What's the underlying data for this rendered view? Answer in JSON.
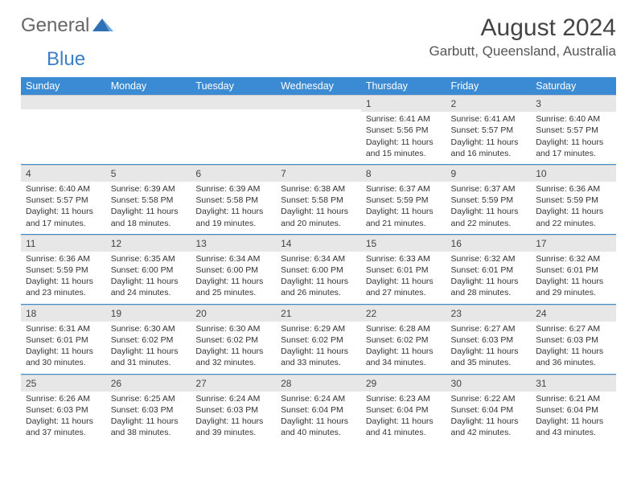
{
  "logo": {
    "part1": "General",
    "part2": "Blue"
  },
  "title": "August 2024",
  "location": "Garbutt, Queensland, Australia",
  "colors": {
    "header_bg": "#3b8bd4",
    "header_fg": "#ffffff",
    "daynum_bg": "#e7e7e7",
    "rule": "#3b8bd4",
    "text": "#333333",
    "logo_blue": "#3b7fc4"
  },
  "day_names": [
    "Sunday",
    "Monday",
    "Tuesday",
    "Wednesday",
    "Thursday",
    "Friday",
    "Saturday"
  ],
  "weeks": [
    [
      null,
      null,
      null,
      null,
      {
        "n": "1",
        "sunrise": "6:41 AM",
        "sunset": "5:56 PM",
        "daylight": "11 hours and 15 minutes."
      },
      {
        "n": "2",
        "sunrise": "6:41 AM",
        "sunset": "5:57 PM",
        "daylight": "11 hours and 16 minutes."
      },
      {
        "n": "3",
        "sunrise": "6:40 AM",
        "sunset": "5:57 PM",
        "daylight": "11 hours and 17 minutes."
      }
    ],
    [
      {
        "n": "4",
        "sunrise": "6:40 AM",
        "sunset": "5:57 PM",
        "daylight": "11 hours and 17 minutes."
      },
      {
        "n": "5",
        "sunrise": "6:39 AM",
        "sunset": "5:58 PM",
        "daylight": "11 hours and 18 minutes."
      },
      {
        "n": "6",
        "sunrise": "6:39 AM",
        "sunset": "5:58 PM",
        "daylight": "11 hours and 19 minutes."
      },
      {
        "n": "7",
        "sunrise": "6:38 AM",
        "sunset": "5:58 PM",
        "daylight": "11 hours and 20 minutes."
      },
      {
        "n": "8",
        "sunrise": "6:37 AM",
        "sunset": "5:59 PM",
        "daylight": "11 hours and 21 minutes."
      },
      {
        "n": "9",
        "sunrise": "6:37 AM",
        "sunset": "5:59 PM",
        "daylight": "11 hours and 22 minutes."
      },
      {
        "n": "10",
        "sunrise": "6:36 AM",
        "sunset": "5:59 PM",
        "daylight": "11 hours and 22 minutes."
      }
    ],
    [
      {
        "n": "11",
        "sunrise": "6:36 AM",
        "sunset": "5:59 PM",
        "daylight": "11 hours and 23 minutes."
      },
      {
        "n": "12",
        "sunrise": "6:35 AM",
        "sunset": "6:00 PM",
        "daylight": "11 hours and 24 minutes."
      },
      {
        "n": "13",
        "sunrise": "6:34 AM",
        "sunset": "6:00 PM",
        "daylight": "11 hours and 25 minutes."
      },
      {
        "n": "14",
        "sunrise": "6:34 AM",
        "sunset": "6:00 PM",
        "daylight": "11 hours and 26 minutes."
      },
      {
        "n": "15",
        "sunrise": "6:33 AM",
        "sunset": "6:01 PM",
        "daylight": "11 hours and 27 minutes."
      },
      {
        "n": "16",
        "sunrise": "6:32 AM",
        "sunset": "6:01 PM",
        "daylight": "11 hours and 28 minutes."
      },
      {
        "n": "17",
        "sunrise": "6:32 AM",
        "sunset": "6:01 PM",
        "daylight": "11 hours and 29 minutes."
      }
    ],
    [
      {
        "n": "18",
        "sunrise": "6:31 AM",
        "sunset": "6:01 PM",
        "daylight": "11 hours and 30 minutes."
      },
      {
        "n": "19",
        "sunrise": "6:30 AM",
        "sunset": "6:02 PM",
        "daylight": "11 hours and 31 minutes."
      },
      {
        "n": "20",
        "sunrise": "6:30 AM",
        "sunset": "6:02 PM",
        "daylight": "11 hours and 32 minutes."
      },
      {
        "n": "21",
        "sunrise": "6:29 AM",
        "sunset": "6:02 PM",
        "daylight": "11 hours and 33 minutes."
      },
      {
        "n": "22",
        "sunrise": "6:28 AM",
        "sunset": "6:02 PM",
        "daylight": "11 hours and 34 minutes."
      },
      {
        "n": "23",
        "sunrise": "6:27 AM",
        "sunset": "6:03 PM",
        "daylight": "11 hours and 35 minutes."
      },
      {
        "n": "24",
        "sunrise": "6:27 AM",
        "sunset": "6:03 PM",
        "daylight": "11 hours and 36 minutes."
      }
    ],
    [
      {
        "n": "25",
        "sunrise": "6:26 AM",
        "sunset": "6:03 PM",
        "daylight": "11 hours and 37 minutes."
      },
      {
        "n": "26",
        "sunrise": "6:25 AM",
        "sunset": "6:03 PM",
        "daylight": "11 hours and 38 minutes."
      },
      {
        "n": "27",
        "sunrise": "6:24 AM",
        "sunset": "6:03 PM",
        "daylight": "11 hours and 39 minutes."
      },
      {
        "n": "28",
        "sunrise": "6:24 AM",
        "sunset": "6:04 PM",
        "daylight": "11 hours and 40 minutes."
      },
      {
        "n": "29",
        "sunrise": "6:23 AM",
        "sunset": "6:04 PM",
        "daylight": "11 hours and 41 minutes."
      },
      {
        "n": "30",
        "sunrise": "6:22 AM",
        "sunset": "6:04 PM",
        "daylight": "11 hours and 42 minutes."
      },
      {
        "n": "31",
        "sunrise": "6:21 AM",
        "sunset": "6:04 PM",
        "daylight": "11 hours and 43 minutes."
      }
    ]
  ],
  "labels": {
    "sunrise": "Sunrise: ",
    "sunset": "Sunset: ",
    "daylight": "Daylight: "
  }
}
